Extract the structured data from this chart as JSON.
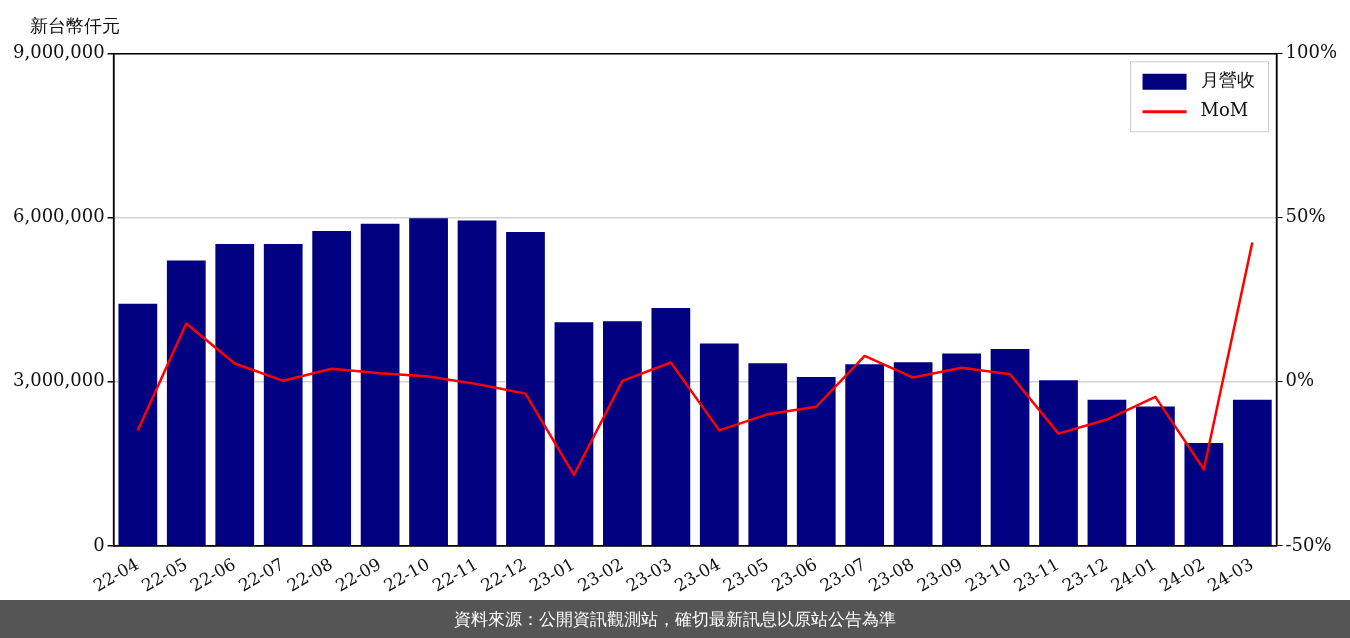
{
  "chart_data": {
    "type": "bar",
    "ylabel": "新台幣仟元",
    "categories": [
      "22-04",
      "22-05",
      "22-06",
      "22-07",
      "22-08",
      "22-09",
      "22-10",
      "22-11",
      "22-12",
      "23-01",
      "23-02",
      "23-03",
      "23-04",
      "23-05",
      "23-06",
      "23-07",
      "23-08",
      "23-09",
      "23-10",
      "23-11",
      "23-12",
      "24-01",
      "24-02",
      "24-03"
    ],
    "series": [
      {
        "name": "月營收",
        "color": "#000080",
        "values": [
          4430000,
          5220000,
          5520000,
          5520000,
          5760000,
          5890000,
          5990000,
          5950000,
          5740000,
          4090000,
          4110000,
          4350000,
          3700000,
          3340000,
          3090000,
          3320000,
          3360000,
          3520000,
          3600000,
          3030000,
          2670000,
          2550000,
          1880000,
          2670000
        ]
      },
      {
        "name": "MoM",
        "type": "line",
        "axis": "y2",
        "color": "#ff0000",
        "values": [
          -14.8,
          17.8,
          5.6,
          0.3,
          4.0,
          2.6,
          1.6,
          -0.7,
          -3.6,
          -28.4,
          0.3,
          5.9,
          -14.8,
          -9.9,
          -7.6,
          7.9,
          1.3,
          4.3,
          2.3,
          -15.8,
          -11.5,
          -4.6,
          -26.7,
          42.5
        ]
      }
    ],
    "ylim": [
      0,
      9000000
    ],
    "yticks": [
      {
        "value": 0,
        "label": "0"
      },
      {
        "value": 3000000,
        "label": "3,000,000"
      },
      {
        "value": 6000000,
        "label": "6,000,000"
      },
      {
        "value": 9000000,
        "label": "9,000,000"
      }
    ],
    "y2lim": [
      -50,
      100
    ],
    "y2ticks": [
      {
        "value": -50,
        "label": "-50%"
      },
      {
        "value": 0,
        "label": "0%"
      },
      {
        "value": 50,
        "label": "50%"
      },
      {
        "value": 100,
        "label": "100%"
      }
    ],
    "grid": "y",
    "legend": "top right",
    "marker": "none",
    "line_style": "solid",
    "annotations": [
      "資料來源：公開資訊觀測站，確切最新訊息以原站公告為準"
    ]
  }
}
